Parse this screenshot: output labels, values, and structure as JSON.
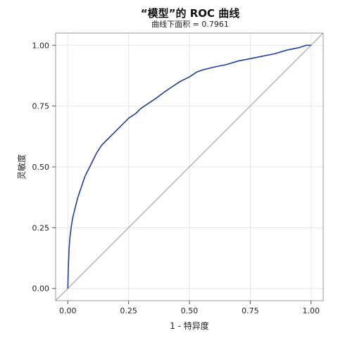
{
  "chart_data": {
    "type": "line",
    "title": "“模型”的 ROC 曲线",
    "subtitle": "曲线下面积 = 0.7961",
    "xlabel": "1 - 特异度",
    "ylabel": "灵敏度",
    "xlim": [
      -0.05,
      1.05
    ],
    "ylim": [
      -0.05,
      1.05
    ],
    "xticks": [
      0.0,
      0.25,
      0.5,
      0.75,
      1.0
    ],
    "yticks": [
      0.0,
      0.25,
      0.5,
      0.75,
      1.0
    ],
    "xtick_labels": [
      "0.00",
      "0.25",
      "0.50",
      "0.75",
      "1.00"
    ],
    "ytick_labels": [
      "0.00",
      "0.25",
      "0.50",
      "0.75",
      "1.00"
    ],
    "grid": true,
    "colors": {
      "roc": "#1f3f9c",
      "reference": "#999999",
      "grid": "#e6e6e6",
      "frame": "#9a9a9a"
    },
    "series": [
      {
        "x": [
          0.0,
          0.002,
          0.005,
          0.008,
          0.01,
          0.015,
          0.02,
          0.025,
          0.03,
          0.04,
          0.05,
          0.06,
          0.07,
          0.08,
          0.09,
          0.1,
          0.12,
          0.14,
          0.16,
          0.18,
          0.2,
          0.22,
          0.25,
          0.28,
          0.3,
          0.33,
          0.36,
          0.4,
          0.43,
          0.46,
          0.5,
          0.53,
          0.56,
          0.6,
          0.65,
          0.7,
          0.75,
          0.8,
          0.85,
          0.9,
          0.95,
          0.98,
          1.0
        ],
        "y": [
          0.0,
          0.08,
          0.16,
          0.2,
          0.22,
          0.26,
          0.29,
          0.31,
          0.33,
          0.37,
          0.4,
          0.43,
          0.46,
          0.48,
          0.5,
          0.52,
          0.56,
          0.59,
          0.61,
          0.63,
          0.65,
          0.67,
          0.7,
          0.72,
          0.74,
          0.76,
          0.78,
          0.81,
          0.83,
          0.85,
          0.87,
          0.89,
          0.9,
          0.91,
          0.92,
          0.935,
          0.945,
          0.955,
          0.965,
          0.98,
          0.99,
          1.0,
          1.0
        ]
      }
    ],
    "reference_line": {
      "x": [
        -0.05,
        1.05
      ],
      "y": [
        -0.05,
        1.05
      ]
    }
  }
}
